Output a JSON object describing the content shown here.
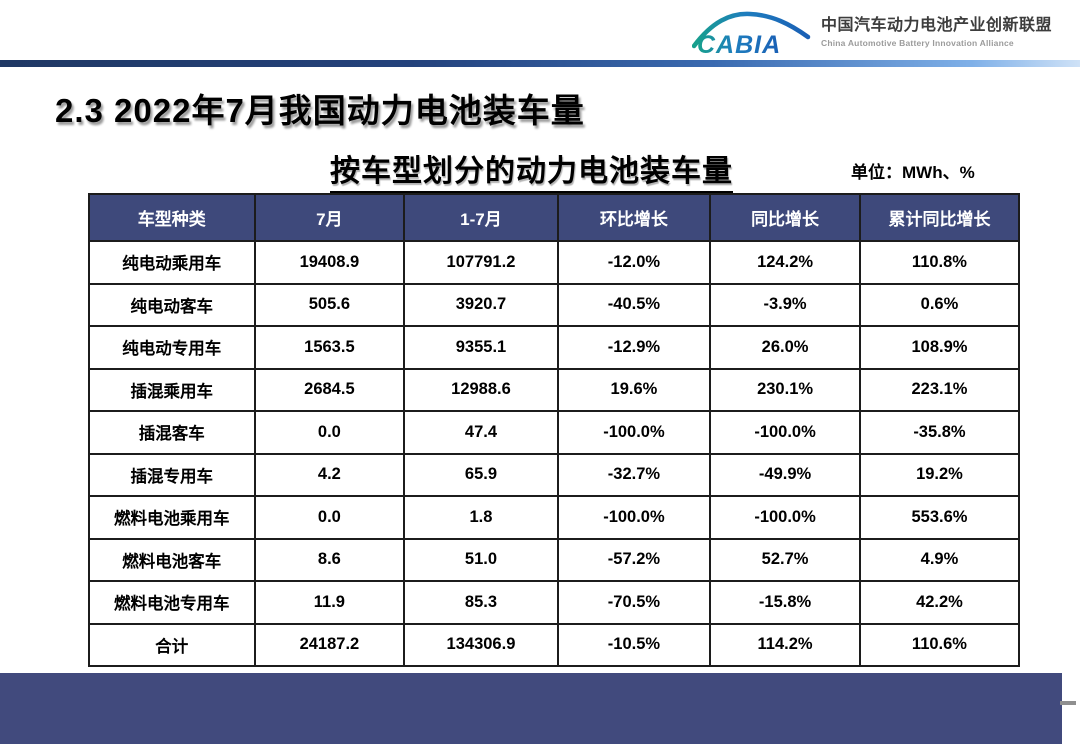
{
  "page_title": "2.3 2022年7月我国动力电池装车量",
  "table_title": "按车型划分的动力电池装车量",
  "unit_label": "单位：MWh、%",
  "logo": {
    "abbr": "CABIA",
    "name_cn": "中国汽车动力电池产业创新联盟",
    "name_en": "China Automotive Battery Innovation Alliance"
  },
  "table": {
    "columns": [
      "车型种类",
      "7月",
      "1-7月",
      "环比增长",
      "同比增长",
      "累计同比增长"
    ],
    "rows": [
      [
        "纯电动乘用车",
        "19408.9",
        "107791.2",
        "-12.0%",
        "124.2%",
        "110.8%"
      ],
      [
        "纯电动客车",
        "505.6",
        "3920.7",
        "-40.5%",
        "-3.9%",
        "0.6%"
      ],
      [
        "纯电动专用车",
        "1563.5",
        "9355.1",
        "-12.9%",
        "26.0%",
        "108.9%"
      ],
      [
        "插混乘用车",
        "2684.5",
        "12988.6",
        "19.6%",
        "230.1%",
        "223.1%"
      ],
      [
        "插混客车",
        "0.0",
        "47.4",
        "-100.0%",
        "-100.0%",
        "-35.8%"
      ],
      [
        "插混专用车",
        "4.2",
        "65.9",
        "-32.7%",
        "-49.9%",
        "19.2%"
      ],
      [
        "燃料电池乘用车",
        "0.0",
        "1.8",
        "-100.0%",
        "-100.0%",
        "553.6%"
      ],
      [
        "燃料电池客车",
        "8.6",
        "51.0",
        "-57.2%",
        "52.7%",
        "4.9%"
      ],
      [
        "燃料电池专用车",
        "11.9",
        "85.3",
        "-70.5%",
        "-15.8%",
        "42.2%"
      ],
      [
        "合计",
        "24187.2",
        "134306.9",
        "-10.5%",
        "114.2%",
        "110.6%"
      ]
    ]
  },
  "colors": {
    "table_header_bg": "#3E497B",
    "footer_bar": "#414A7D",
    "accent_line_dark": "#1F3864",
    "accent_line_light": "#CFE2F7",
    "logo_teal": "#17A08C",
    "logo_blue": "#1A5FB5"
  }
}
